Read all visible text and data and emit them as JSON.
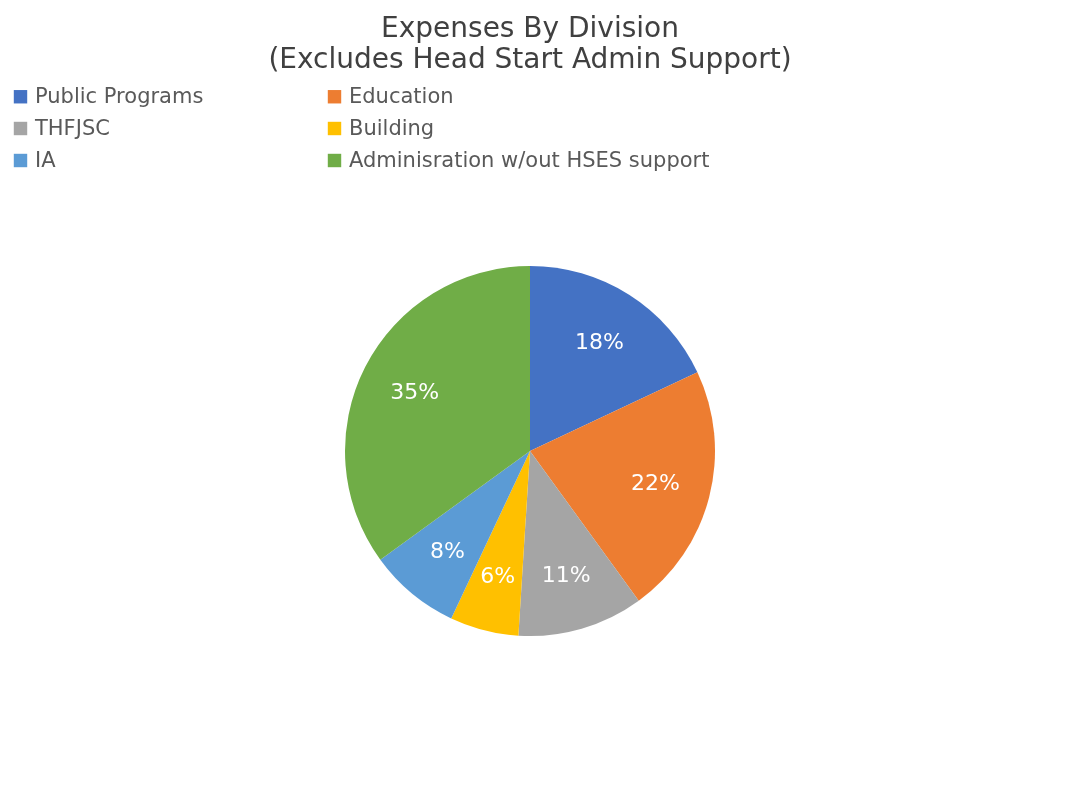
{
  "chart_data": {
    "type": "pie",
    "title": "Expenses By Division",
    "subtitle": "(Excludes Head Start Admin Support)",
    "categories": [
      "Public Programs",
      "Education",
      "THFJSC",
      "Building",
      "IA",
      "Adminisration w/out HSES support"
    ],
    "values": [
      18,
      22,
      11,
      6,
      8,
      35
    ],
    "value_labels": [
      "18%",
      "22%",
      "11%",
      "6%",
      "8%",
      "35%"
    ],
    "colors": [
      "#4472c4",
      "#ed7d31",
      "#a5a5a5",
      "#ffc000",
      "#5b9bd5",
      "#70ad47"
    ],
    "legend": "top"
  }
}
